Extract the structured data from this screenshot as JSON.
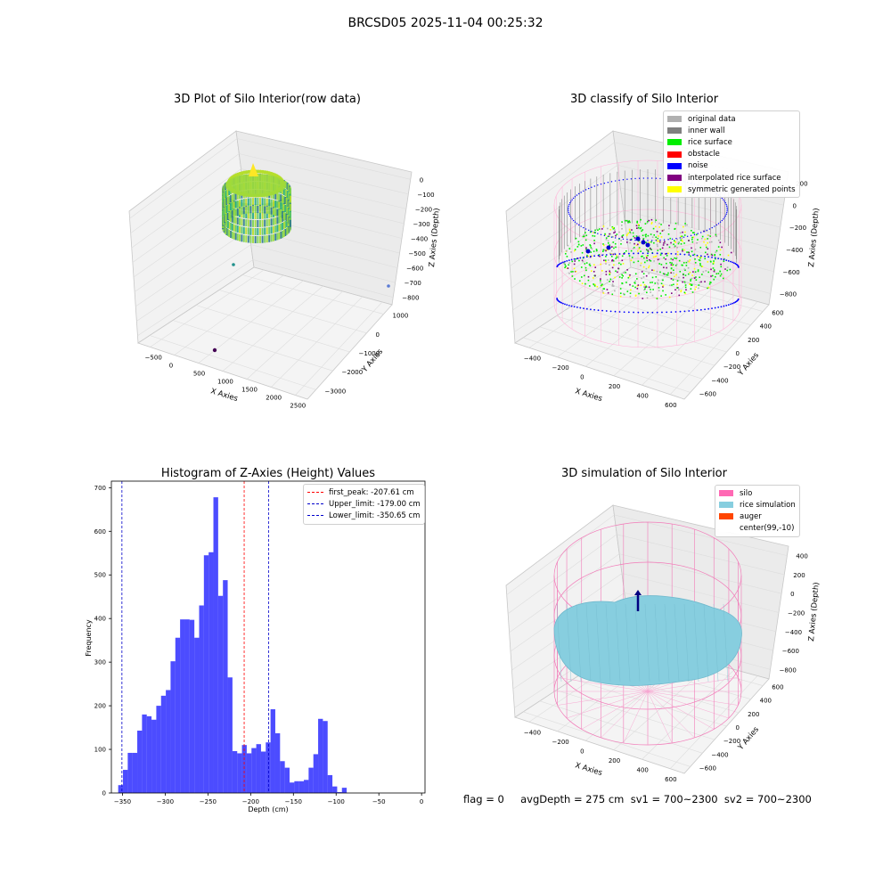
{
  "suptitle": "BRCSD05 2025-11-04 00:25:32",
  "footer": "flag = 0     avgDepth = 275 cm  sv1 = 700~2300  sv2 = 700~2300",
  "chart_data": [
    {
      "type": "scatter",
      "title": "3D Plot of Silo Interior(row data)",
      "xlabel": "X Axies",
      "ylabel": "Y Axies",
      "zlabel": "Z Axies (Depth)",
      "x_ticks": [
        "−500",
        "0",
        "500",
        "1000",
        "1500",
        "2000",
        "2500"
      ],
      "y_ticks": [
        "1000",
        "0",
        "−1000",
        "−2000",
        "−3000"
      ],
      "z_ticks": [
        "0",
        "−100",
        "−200",
        "−300",
        "−400",
        "−500",
        "−600",
        "−700",
        "−800"
      ],
      "colormap": "viridis",
      "grid": true
    },
    {
      "type": "scatter",
      "title": "3D classify of Silo Interior",
      "xlabel": "X Axies",
      "ylabel": "Y Axies",
      "zlabel": "Z Axies (Depth)",
      "x_ticks": [
        "−400",
        "−200",
        "0",
        "200",
        "400",
        "600"
      ],
      "y_ticks": [
        "600",
        "400",
        "200",
        "0",
        "−200",
        "−400",
        "−600"
      ],
      "z_ticks": [
        "200",
        "0",
        "−200",
        "−400",
        "−600",
        "−800"
      ],
      "legend": {
        "placement": "top-right",
        "items": [
          {
            "label": "original data",
            "color": "#b0b0b0"
          },
          {
            "label": "inner wall",
            "color": "#808080"
          },
          {
            "label": "rice surface",
            "color": "#00ee00"
          },
          {
            "label": "obstacle",
            "color": "#ff0000"
          },
          {
            "label": "noise",
            "color": "#0000ff"
          },
          {
            "label": "interpolated rice surface",
            "color": "#800080"
          },
          {
            "label": "symmetric generated points",
            "color": "#ffff00"
          }
        ]
      },
      "grid": true
    },
    {
      "type": "bar",
      "title": "Histogram of Z-Axies (Height) Values",
      "xlabel": "Depth (cm)",
      "ylabel": "Frequency",
      "xlim": [
        -363,
        4
      ],
      "ylim": [
        0,
        715
      ],
      "x_ticks": [
        -350,
        -300,
        -250,
        -200,
        -150,
        -100,
        -50,
        0
      ],
      "x_tick_labels": [
        "−350",
        "−300",
        "−250",
        "−200",
        "−150",
        "−100",
        "−50",
        "0"
      ],
      "y_ticks": [
        0,
        100,
        200,
        300,
        400,
        500,
        600,
        700
      ],
      "y_tick_labels": [
        "0",
        "100",
        "200",
        "300",
        "400",
        "500",
        "600",
        "700"
      ],
      "bar_color": "#0000ff",
      "bin_start": -355,
      "bin_width": 5.57,
      "values": [
        18,
        53,
        92,
        92,
        143,
        180,
        176,
        168,
        200,
        223,
        236,
        302,
        356,
        398,
        398,
        397,
        356,
        430,
        545,
        552,
        678,
        452,
        488,
        265,
        96,
        91,
        110,
        91,
        103,
        112,
        95,
        116,
        192,
        137,
        73,
        58,
        24,
        27,
        27,
        30,
        58,
        89,
        170,
        165,
        41,
        15,
        2,
        12
      ],
      "lines": [
        {
          "label": "first_peak: -207.61 cm",
          "x": -207.61,
          "color": "#ff0000"
        },
        {
          "label": "Upper_limit: -179.00 cm",
          "x": -179.0,
          "color": "#0000cc"
        },
        {
          "label": "Lower_limit: -350.65 cm",
          "x": -350.65,
          "color": "#0000cc"
        }
      ],
      "legend_placement": "top-right"
    },
    {
      "type": "scatter",
      "title": "3D simulation of Silo Interior",
      "xlabel": "X Axies",
      "ylabel": "Y Axies",
      "zlabel": "Z Axies (Depth)",
      "x_ticks": [
        "−400",
        "−200",
        "0",
        "200",
        "400",
        "600"
      ],
      "y_ticks": [
        "600",
        "400",
        "200",
        "0",
        "−200",
        "−400",
        "−600"
      ],
      "z_ticks": [
        "400",
        "200",
        "0",
        "−200",
        "−400",
        "−600",
        "−800"
      ],
      "legend": {
        "placement": "top-right",
        "items": [
          {
            "label": "silo",
            "color": "#ff69b4"
          },
          {
            "label": "rice simulation",
            "color": "#87cedf"
          },
          {
            "label": "auger",
            "color": "#ff4500"
          },
          {
            "label": "center(99,-10)",
            "color": "#ffffff"
          }
        ]
      },
      "grid": true
    }
  ]
}
